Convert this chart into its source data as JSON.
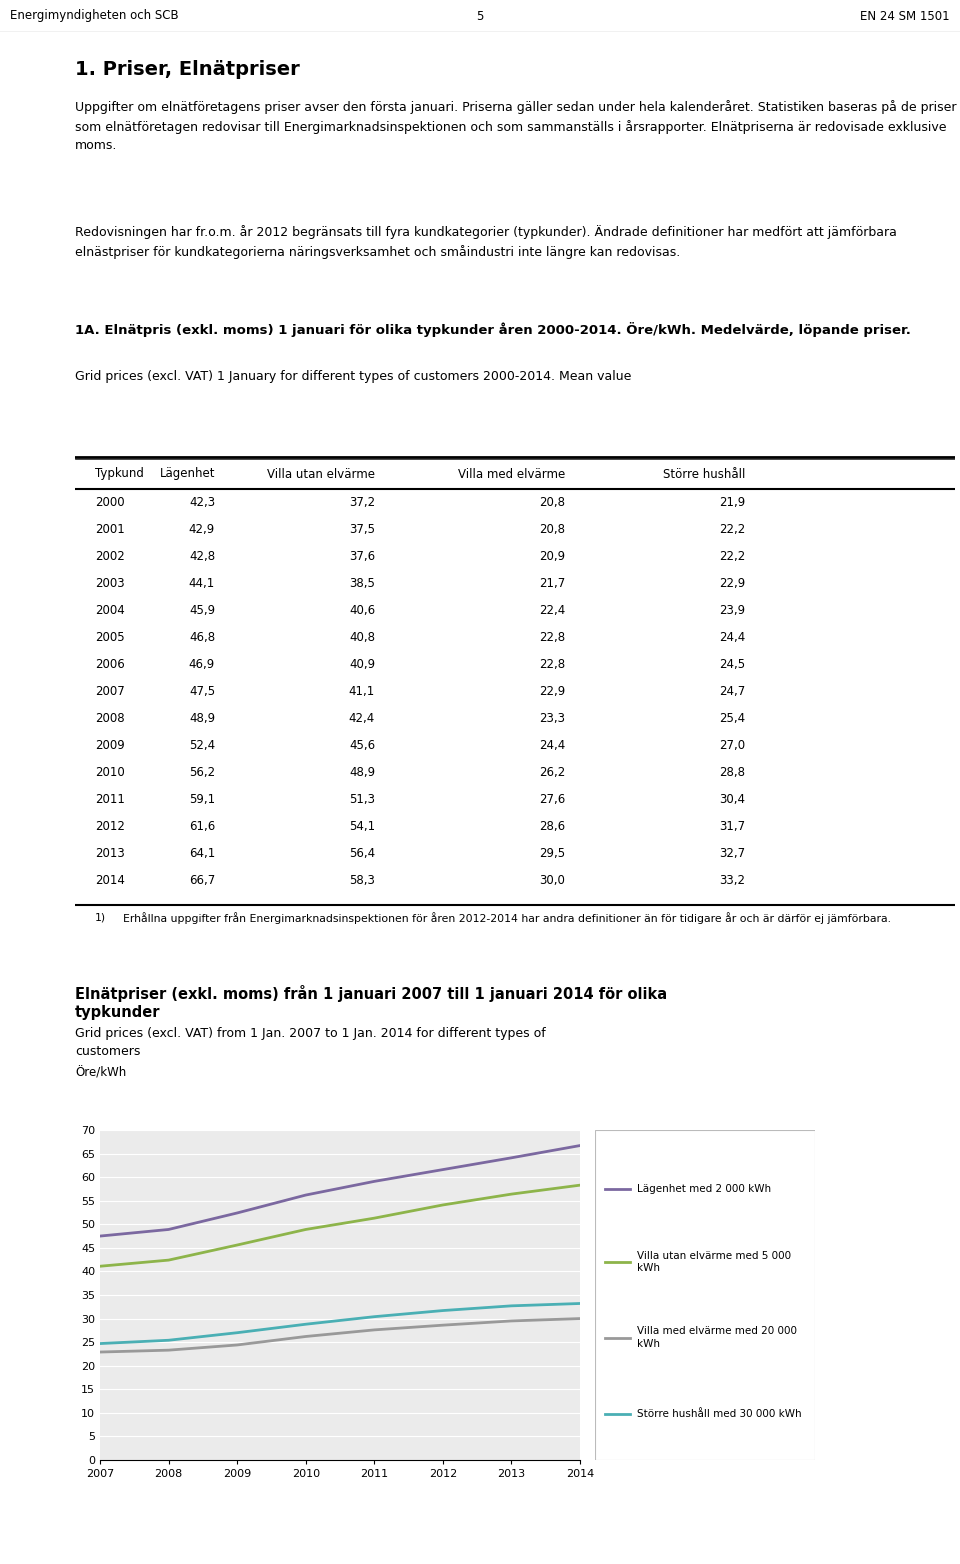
{
  "header_left": "Energimyndigheten och SCB",
  "header_center": "5",
  "header_right": "EN 24 SM 1501",
  "section_title": "1. Priser, Elnätpriser",
  "para1": "Uppgifter om elnätföretagens priser avser den första januari. Priserna gäller sedan under hela kalenderåret. Statistiken baseras på de priser som elnätföretagen redovisar till Energimarknadsinspektionen och som sammanställs i årsrapporter. Elnätpriserna är redovisade exklusive moms.",
  "para2": "Redovisningen har fr.o.m. år 2012 begränsats till fyra kundkategorier (typkunder). Ändrade definitioner har medfört att jämförbara elnästpriser för kundkategorierna näringsverksamhet och småindustri inte längre kan redovisas.",
  "table_title_sv": "1A. Elnätpris (exkl. moms) 1 januari för olika typkunder åren 2000-2014. Öre/kWh. Medelvärde, löpande priser.",
  "table_title_en": "Grid prices (excl. VAT) 1 January for different types of customers 2000-2014. Mean value",
  "table_headers": [
    "Typkund",
    "Lägenhet",
    "Villa utan elvärme",
    "Villa med elvärme",
    "Större hushåll"
  ],
  "table_data": [
    [
      2000,
      42.3,
      37.2,
      20.8,
      21.9
    ],
    [
      2001,
      42.9,
      37.5,
      20.8,
      22.2
    ],
    [
      2002,
      42.8,
      37.6,
      20.9,
      22.2
    ],
    [
      2003,
      44.1,
      38.5,
      21.7,
      22.9
    ],
    [
      2004,
      45.9,
      40.6,
      22.4,
      23.9
    ],
    [
      2005,
      46.8,
      40.8,
      22.8,
      24.4
    ],
    [
      2006,
      46.9,
      40.9,
      22.8,
      24.5
    ],
    [
      2007,
      47.5,
      41.1,
      22.9,
      24.7
    ],
    [
      2008,
      48.9,
      42.4,
      23.3,
      25.4
    ],
    [
      2009,
      52.4,
      45.6,
      24.4,
      27.0
    ],
    [
      2010,
      56.2,
      48.9,
      26.2,
      28.8
    ],
    [
      2011,
      59.1,
      51.3,
      27.6,
      30.4
    ],
    [
      2012,
      61.6,
      54.1,
      28.6,
      31.7
    ],
    [
      2013,
      64.1,
      56.4,
      29.5,
      32.7
    ],
    [
      2014,
      66.7,
      58.3,
      30.0,
      33.2
    ]
  ],
  "footnote_num": "1)",
  "footnote_text": "Erhållna uppgifter från Energimarknadsinspektionen för åren 2012-2014 har andra definitioner än för tidigare år och är därför ej jämförbara.",
  "chart_title_sv_line1": "Elnätpriser (exkl. moms) från 1 januari 2007 till 1 januari 2014 för olika",
  "chart_title_sv_line2": "typkunder",
  "chart_title_en_line1": "Grid prices (excl. VAT) from 1 Jan. 2007 to 1 Jan. 2014 for different types of",
  "chart_title_en_line2": "customers",
  "chart_ylabel": "Öre/kWh",
  "chart_years": [
    2007,
    2008,
    2009,
    2010,
    2011,
    2012,
    2013,
    2014
  ],
  "series": [
    {
      "label": "Lägenhet med 2 000 kWh",
      "color": "#7B68A0",
      "values": [
        47.5,
        48.9,
        52.4,
        56.2,
        59.1,
        61.6,
        64.1,
        66.7
      ]
    },
    {
      "label": "Villa utan elvärme med 5 000\nkWh",
      "color": "#8DB44A",
      "values": [
        41.1,
        42.4,
        45.6,
        48.9,
        51.3,
        54.1,
        56.4,
        58.3
      ]
    },
    {
      "label": "Villa med elvärme med 20 000\nkWh",
      "color": "#999999",
      "values": [
        22.9,
        23.3,
        24.4,
        26.2,
        27.6,
        28.6,
        29.5,
        30.0
      ]
    },
    {
      "label": "Större hushåll med 30 000 kWh",
      "color": "#4AAFB4",
      "values": [
        24.7,
        25.4,
        27.0,
        28.8,
        30.4,
        31.7,
        32.7,
        33.2
      ]
    }
  ],
  "ylim": [
    0,
    70
  ],
  "yticks": [
    0,
    5,
    10,
    15,
    20,
    25,
    30,
    35,
    40,
    45,
    50,
    55,
    60,
    65,
    70
  ]
}
